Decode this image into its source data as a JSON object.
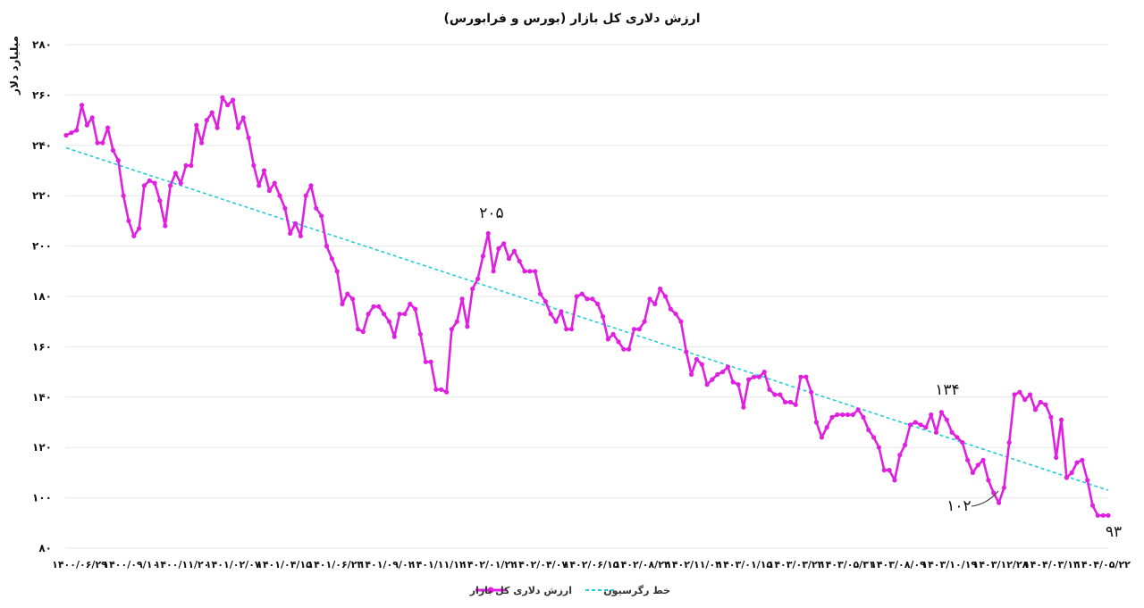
{
  "chart_data": {
    "type": "line",
    "title": "ارزش دلاری کل بازار (بورس و فرابورس)",
    "ylabel": "میلیارد دلار",
    "xlabel": "",
    "ylim": [
      80,
      280
    ],
    "yticks": [
      80,
      100,
      120,
      140,
      160,
      180,
      200,
      220,
      240,
      260,
      280
    ],
    "ytick_labels": [
      "۸۰",
      "۱۰۰",
      "۱۲۰",
      "۱۴۰",
      "۱۶۰",
      "۱۸۰",
      "۲۰۰",
      "۲۲۰",
      "۲۴۰",
      "۲۶۰",
      "۲۸۰"
    ],
    "x_tick_labels": [
      "۱۴۰۰/۰۶/۲۹",
      "۱۴۰۰/۰۹/۱۰",
      "۱۴۰۰/۱۱/۲۰",
      "۱۴۰۱/۰۲/۰۷",
      "۱۴۰۱/۰۴/۱۵",
      "۱۴۰۱/۰۶/۲۳",
      "۱۴۰۱/۰۹/۰۲",
      "۱۴۰۱/۱۱/۱۲",
      "۱۴۰۲/۰۱/۲۲",
      "۱۴۰۲/۰۴/۰۷",
      "۱۴۰۲/۰۶/۱۵",
      "۱۴۰۲/۰۸/۲۴",
      "۱۴۰۲/۱۱/۰۴",
      "۱۴۰۳/۰۱/۱۵",
      "۱۴۰۳/۰۳/۲۳",
      "۱۴۰۳/۰۵/۳۱",
      "۱۴۰۳/۰۸/۰۹",
      "۱۴۰۳/۱۰/۱۹",
      "۱۴۰۳/۱۲/۲۸",
      "۱۴۰۴/۰۳/۱۳",
      "۱۴۰۴/۰۵/۲۲"
    ],
    "grid": true,
    "legend_position": "bottom",
    "series": [
      {
        "name": "ارزش دلاری کل بازار",
        "color": "#e020e0",
        "values": [
          244,
          245,
          246,
          256,
          248,
          251,
          241,
          241,
          247,
          238,
          234,
          220,
          210,
          204,
          207,
          224,
          226,
          225,
          218,
          208,
          224,
          229,
          225,
          232,
          232,
          248,
          241,
          250,
          253,
          247,
          259,
          256,
          258,
          247,
          251,
          243,
          232,
          224,
          230,
          222,
          225,
          220,
          215,
          205,
          209,
          204,
          220,
          224,
          215,
          212,
          200,
          195,
          190,
          177,
          181,
          179,
          167,
          166,
          173,
          176,
          176,
          173,
          170,
          164,
          173,
          173,
          177,
          175,
          165,
          154,
          154,
          143,
          143,
          142,
          167,
          170,
          179,
          168,
          183,
          187,
          196,
          205,
          190,
          199,
          201,
          195,
          198,
          194,
          190,
          190,
          190,
          181,
          178,
          173,
          170,
          174,
          167,
          167,
          180,
          181,
          179,
          179,
          177,
          172,
          163,
          165,
          162,
          159,
          159,
          167,
          167,
          170,
          179,
          177,
          183,
          180,
          175,
          173,
          170,
          158,
          149,
          155,
          153,
          145,
          147,
          149,
          150,
          152,
          146,
          145,
          136,
          147,
          148,
          148,
          150,
          143,
          141,
          141,
          138,
          138,
          137,
          148,
          148,
          142,
          130,
          124,
          128,
          132,
          133,
          133,
          133,
          133,
          135,
          132,
          127,
          124,
          120,
          111,
          111,
          107,
          117,
          121,
          129,
          130,
          129,
          128,
          133,
          126,
          134,
          131,
          126,
          124,
          122,
          115,
          110,
          113,
          115,
          107,
          102,
          98,
          104,
          122,
          141,
          142,
          139,
          141,
          135,
          138,
          137,
          132,
          116,
          131,
          108,
          110,
          114,
          115,
          107,
          97,
          93,
          93,
          93
        ]
      },
      {
        "name": "خط رگرسیون",
        "color": "#22ccd6",
        "style": "dashed",
        "values_start": 239,
        "values_end": 103
      }
    ],
    "annotations": [
      {
        "text": "۲۰۵",
        "value": 205
      },
      {
        "text": "۱۳۴",
        "value": 134
      },
      {
        "text": "۱۰۲",
        "value": 102
      },
      {
        "text": "۹۳",
        "value": 93
      }
    ]
  },
  "colors": {
    "series_line": "#e020e0",
    "series_marker": "#e020e0",
    "regression": "#22ccd6",
    "grid": "#e6e6e6"
  }
}
